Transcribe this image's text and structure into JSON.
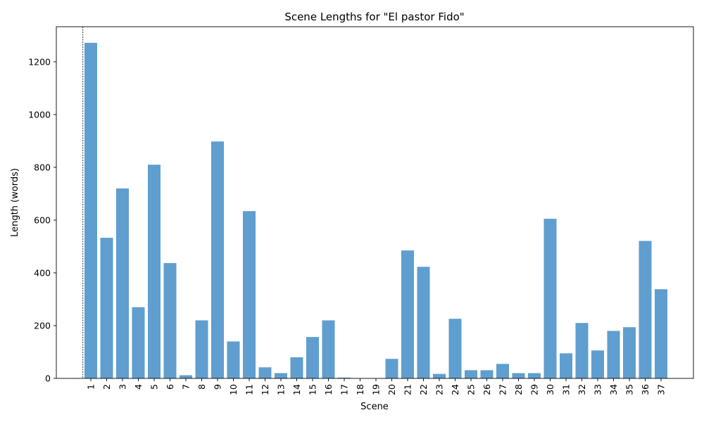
{
  "chart_data": {
    "type": "bar",
    "title": "Scene Lengths for \"El pastor Fido\"",
    "xlabel": "Scene",
    "ylabel": "Length (words)",
    "categories": [
      "1",
      "2",
      "3",
      "4",
      "5",
      "6",
      "7",
      "8",
      "9",
      "10",
      "11",
      "12",
      "13",
      "14",
      "15",
      "16",
      "17",
      "18",
      "19",
      "20",
      "21",
      "22",
      "23",
      "24",
      "25",
      "26",
      "27",
      "28",
      "29",
      "30",
      "31",
      "32",
      "33",
      "34",
      "35",
      "36",
      "37"
    ],
    "values": [
      1272,
      533,
      720,
      270,
      810,
      437,
      12,
      220,
      898,
      140,
      634,
      42,
      20,
      80,
      157,
      220,
      3,
      0,
      0,
      74,
      485,
      423,
      17,
      226,
      31,
      31,
      55,
      20,
      20,
      605,
      95,
      210,
      106,
      180,
      194,
      521,
      338
    ],
    "ylim": [
      0,
      1333
    ],
    "yticks": [
      0,
      200,
      400,
      600,
      800,
      1000,
      1200
    ],
    "bar_color": "#5f9ecf",
    "grid": false,
    "reference_line_position": 0
  }
}
